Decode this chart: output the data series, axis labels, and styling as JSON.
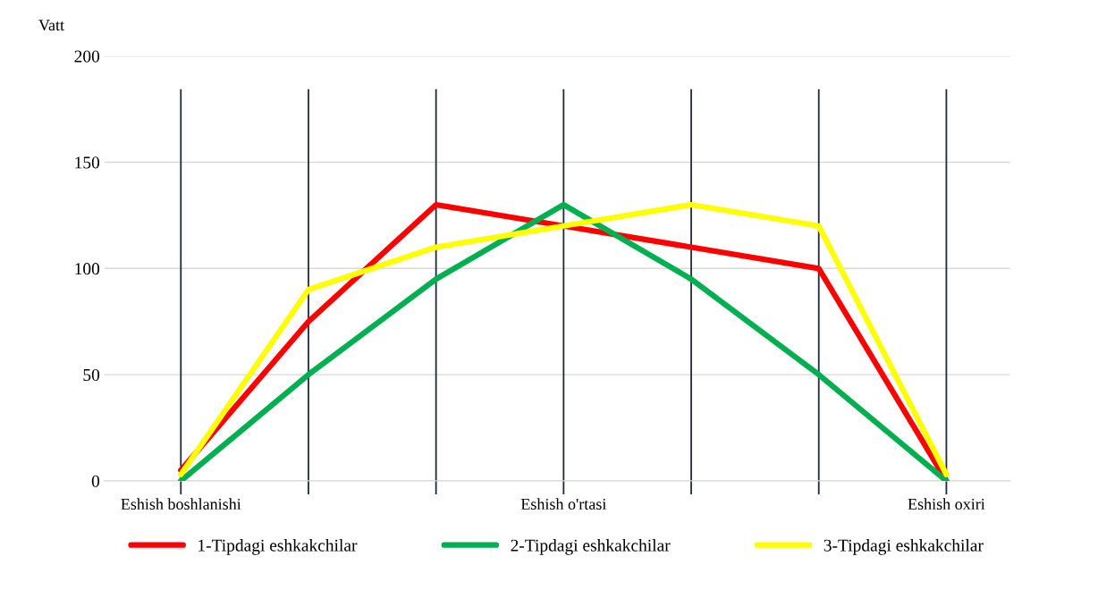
{
  "chart_data": {
    "type": "line",
    "ylabel": "Vatt",
    "categories": [
      "Eshish boshlanishi",
      null,
      null,
      "Eshish o'rtasi",
      null,
      null,
      "Eshish oxiri"
    ],
    "series": [
      {
        "name": "1-Tipdagi eshkakchilar",
        "color": "#ff0000",
        "values": [
          5,
          75,
          130,
          120,
          110,
          100,
          0
        ]
      },
      {
        "name": "2-Tipdagi eshkakchilar",
        "color": "#00b050",
        "values": [
          0,
          50,
          95,
          130,
          95,
          50,
          0
        ]
      },
      {
        "name": "3-Tipdagi eshkakchilar",
        "color": "#ffff00",
        "values": [
          3,
          90,
          110,
          120,
          130,
          120,
          3
        ]
      }
    ],
    "ylim": [
      0,
      200
    ],
    "yticks": [
      0,
      50,
      100,
      150,
      200
    ],
    "grid": true,
    "legend": "bottom",
    "marker": "none",
    "line_style": "solid"
  }
}
